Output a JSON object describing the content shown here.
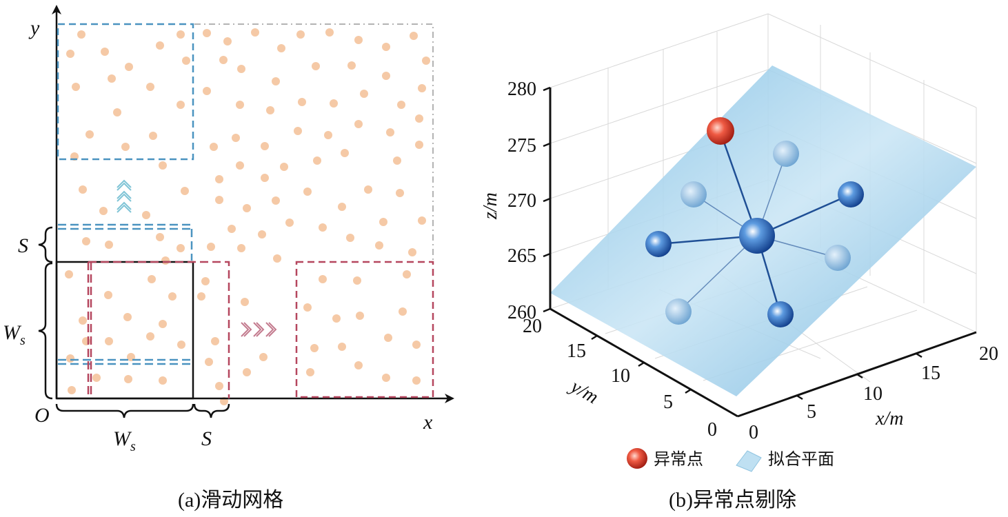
{
  "panel_a": {
    "caption_prefix": "(a)",
    "caption_text": "滑动网格",
    "axis_x": "x",
    "axis_y": "y",
    "origin": "O",
    "step_label": "S",
    "window_label": "W",
    "window_sub": "s",
    "point_color": "#f5c9a6",
    "blue_color": "#4a93c0",
    "red_color": "#b5465e"
  },
  "panel_b": {
    "caption_prefix": "(b)",
    "caption_text": "异常点剔除",
    "z_axis_label": "z/m",
    "y_axis_label": "y/m",
    "x_axis_label": "x/m",
    "z_ticks": [
      "260",
      "265",
      "270",
      "275",
      "280"
    ],
    "y_ticks": [
      "0",
      "5",
      "10",
      "15",
      "20"
    ],
    "x_ticks": [
      "0",
      "5",
      "10",
      "15",
      "20"
    ],
    "legend": [
      {
        "label": "异常点",
        "icon": "red-sphere-icon"
      },
      {
        "label": "拟合平面",
        "icon": "plane-icon"
      }
    ],
    "plane_color": "#a9d3ea",
    "normal_color": "#1f5fae",
    "outlier_color": "#d9362b"
  }
}
